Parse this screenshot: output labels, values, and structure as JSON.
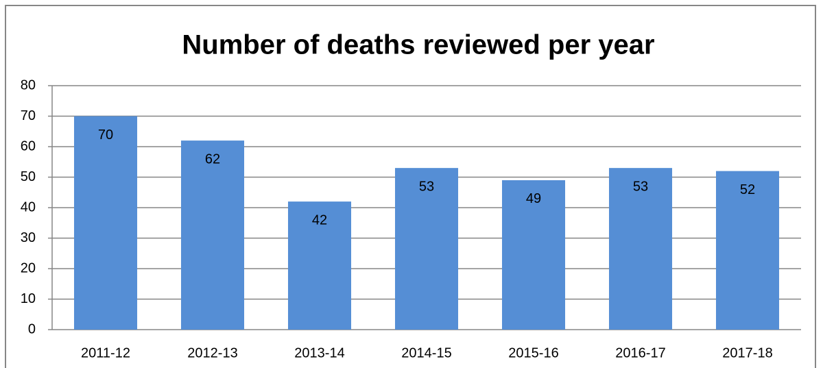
{
  "chart_data": {
    "type": "bar",
    "title": "Number of deaths reviewed per year",
    "categories": [
      "2011-12",
      "2012-13",
      "2013-14",
      "2014-15",
      "2015-16",
      "2016-17",
      "2017-18"
    ],
    "values": [
      70,
      62,
      42,
      53,
      49,
      53,
      52
    ],
    "color": "#558ed5",
    "ylim": [
      0,
      80
    ],
    "yticks": [
      0,
      10,
      20,
      30,
      40,
      50,
      60,
      70,
      80
    ],
    "grid": true
  }
}
